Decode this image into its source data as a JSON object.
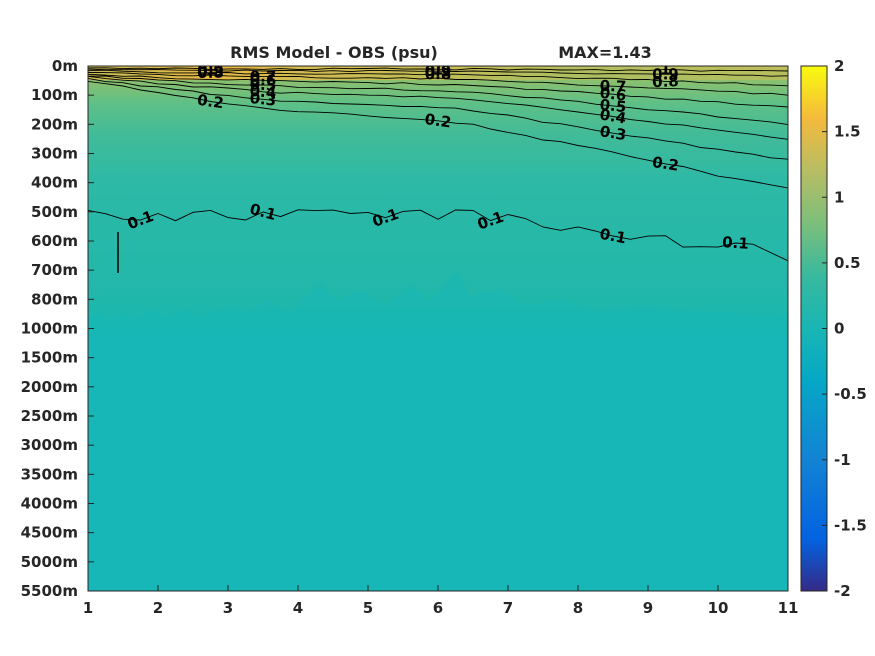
{
  "chart_data": {
    "type": "heatmap",
    "title": "RMS Model - OBS (psu)",
    "subtitle": "MAX=1.43",
    "xlabel": "",
    "ylabel": "",
    "x_ticks": [
      "1",
      "2",
      "3",
      "4",
      "5",
      "6",
      "7",
      "8",
      "9",
      "10",
      "11"
    ],
    "xlim": [
      1,
      11
    ],
    "y_ticks": [
      "0m",
      "100m",
      "200m",
      "300m",
      "400m",
      "500m",
      "600m",
      "700m",
      "800m",
      "1000m",
      "1500m",
      "2000m",
      "2500m",
      "3000m",
      "3500m",
      "4000m",
      "4500m",
      "5000m",
      "5500m"
    ],
    "colorbar": {
      "ticks": [
        "2",
        "1.5",
        "1",
        "0.5",
        "0",
        "-0.5",
        "-1",
        "-1.5",
        "-2"
      ],
      "range": [
        -2,
        2
      ],
      "colormap": "parula"
    },
    "background_value": 0.05,
    "contours": [
      {
        "level": 0.1,
        "depth": [
          510,
          515,
          510,
          505,
          500,
          500,
          510,
          530,
          560,
          590,
          615,
          650
        ],
        "labels": [
          "0.1",
          "0.1",
          "0.1",
          "0.1",
          "0.1",
          "0.1"
        ]
      },
      {
        "level": 0.2,
        "depth": [
          55,
          85,
          125,
          150,
          165,
          180,
          200,
          245,
          285,
          330,
          380,
          420
        ],
        "labels": [
          "0.2",
          "0.2",
          "0.2"
        ]
      },
      {
        "level": 0.3,
        "depth": [
          45,
          70,
          98,
          118,
          128,
          138,
          150,
          185,
          220,
          255,
          290,
          320
        ],
        "labels": [
          "0.3",
          "0.3"
        ]
      },
      {
        "level": 0.4,
        "depth": [
          38,
          58,
          75,
          90,
          98,
          104,
          113,
          140,
          168,
          195,
          222,
          250
        ],
        "labels": [
          "0.4",
          "0.4"
        ]
      },
      {
        "level": 0.5,
        "depth": [
          32,
          48,
          60,
          70,
          76,
          80,
          88,
          108,
          130,
          152,
          175,
          198
        ],
        "labels": [
          "0.5",
          "0.5"
        ]
      },
      {
        "level": 0.6,
        "depth": [
          26,
          38,
          46,
          52,
          56,
          60,
          66,
          80,
          95,
          110,
          126,
          142
        ],
        "labels": [
          "0.6",
          "0.6"
        ]
      },
      {
        "level": 0.7,
        "depth": [
          20,
          30,
          34,
          38,
          40,
          42,
          46,
          56,
          66,
          76,
          88,
          100
        ],
        "labels": [
          "0.7",
          "0.7"
        ]
      },
      {
        "level": 0.8,
        "depth": [
          14,
          22,
          24,
          26,
          27,
          28,
          31,
          37,
          43,
          50,
          58,
          66
        ],
        "labels": [
          "0.8",
          "0.8",
          "0.8"
        ]
      },
      {
        "level": 0.9,
        "depth": [
          9,
          14,
          15,
          16,
          17,
          17,
          19,
          22,
          25,
          28,
          32,
          36
        ],
        "labels": [
          "0.9",
          "0.9",
          "0.9"
        ]
      },
      {
        "level": 1.0,
        "depth": [
          5,
          8,
          9,
          9,
          10,
          10,
          11,
          12,
          13,
          14,
          16,
          18
        ],
        "labels": [
          "1",
          "1",
          "1"
        ]
      }
    ]
  }
}
